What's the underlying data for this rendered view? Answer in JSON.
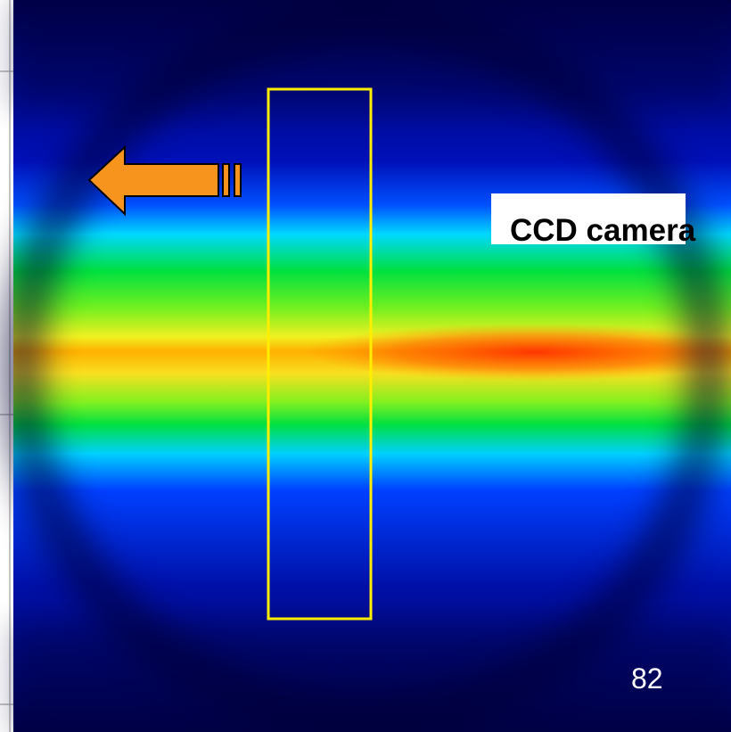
{
  "label": "CCD camera",
  "page_number": "82"
}
